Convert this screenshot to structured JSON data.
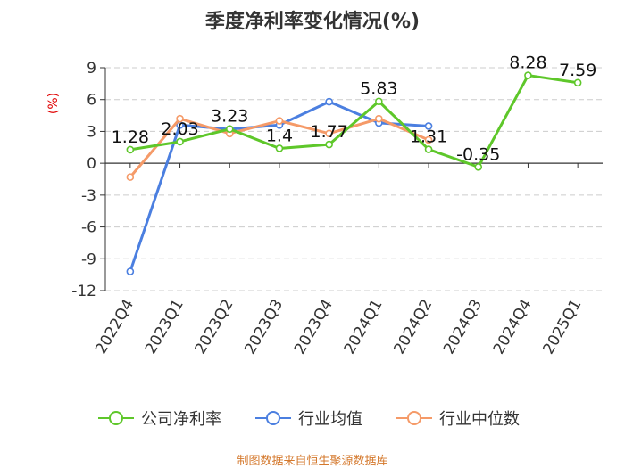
{
  "title": "季度净利率变化情况(%)",
  "unit_label": "(%)",
  "footer": "制图数据来自恒生聚源数据库",
  "colors": {
    "company": "#5ec72a",
    "industry_avg": "#4b7fe0",
    "industry_median": "#f59a68",
    "grid": "#cccccc",
    "axis": "#333333"
  },
  "legend": {
    "company": "公司净利率",
    "industry_avg": "行业均值",
    "industry_median": "行业中位数"
  },
  "chart_data": {
    "type": "line",
    "categories": [
      "2022Q4",
      "2023Q1",
      "2023Q2",
      "2023Q3",
      "2023Q4",
      "2024Q1",
      "2024Q2",
      "2024Q3",
      "2024Q4",
      "2025Q1"
    ],
    "ylim": [
      -12,
      9
    ],
    "yticks": [
      9,
      6,
      3,
      0,
      -3,
      -6,
      -9,
      -12
    ],
    "grid": true,
    "legend_position": "bottom",
    "series": [
      {
        "key": "company",
        "name": "公司净利率",
        "values": [
          1.28,
          2.03,
          3.23,
          1.4,
          1.77,
          5.83,
          1.31,
          -0.35,
          8.28,
          7.59
        ],
        "labels": [
          "1.28",
          "2.03",
          "3.23",
          "1.4",
          "1.77",
          "5.83",
          "1.31",
          "-0.35",
          "8.28",
          "7.59"
        ]
      },
      {
        "key": "industry_avg",
        "name": "行业均值",
        "values": [
          -10.2,
          3.6,
          3.2,
          3.6,
          5.8,
          3.8,
          3.5,
          null,
          null,
          null
        ]
      },
      {
        "key": "industry_median",
        "name": "行业中位数",
        "values": [
          -1.3,
          4.2,
          2.8,
          4.0,
          2.8,
          4.2,
          2.2,
          null,
          null,
          null
        ]
      }
    ]
  }
}
